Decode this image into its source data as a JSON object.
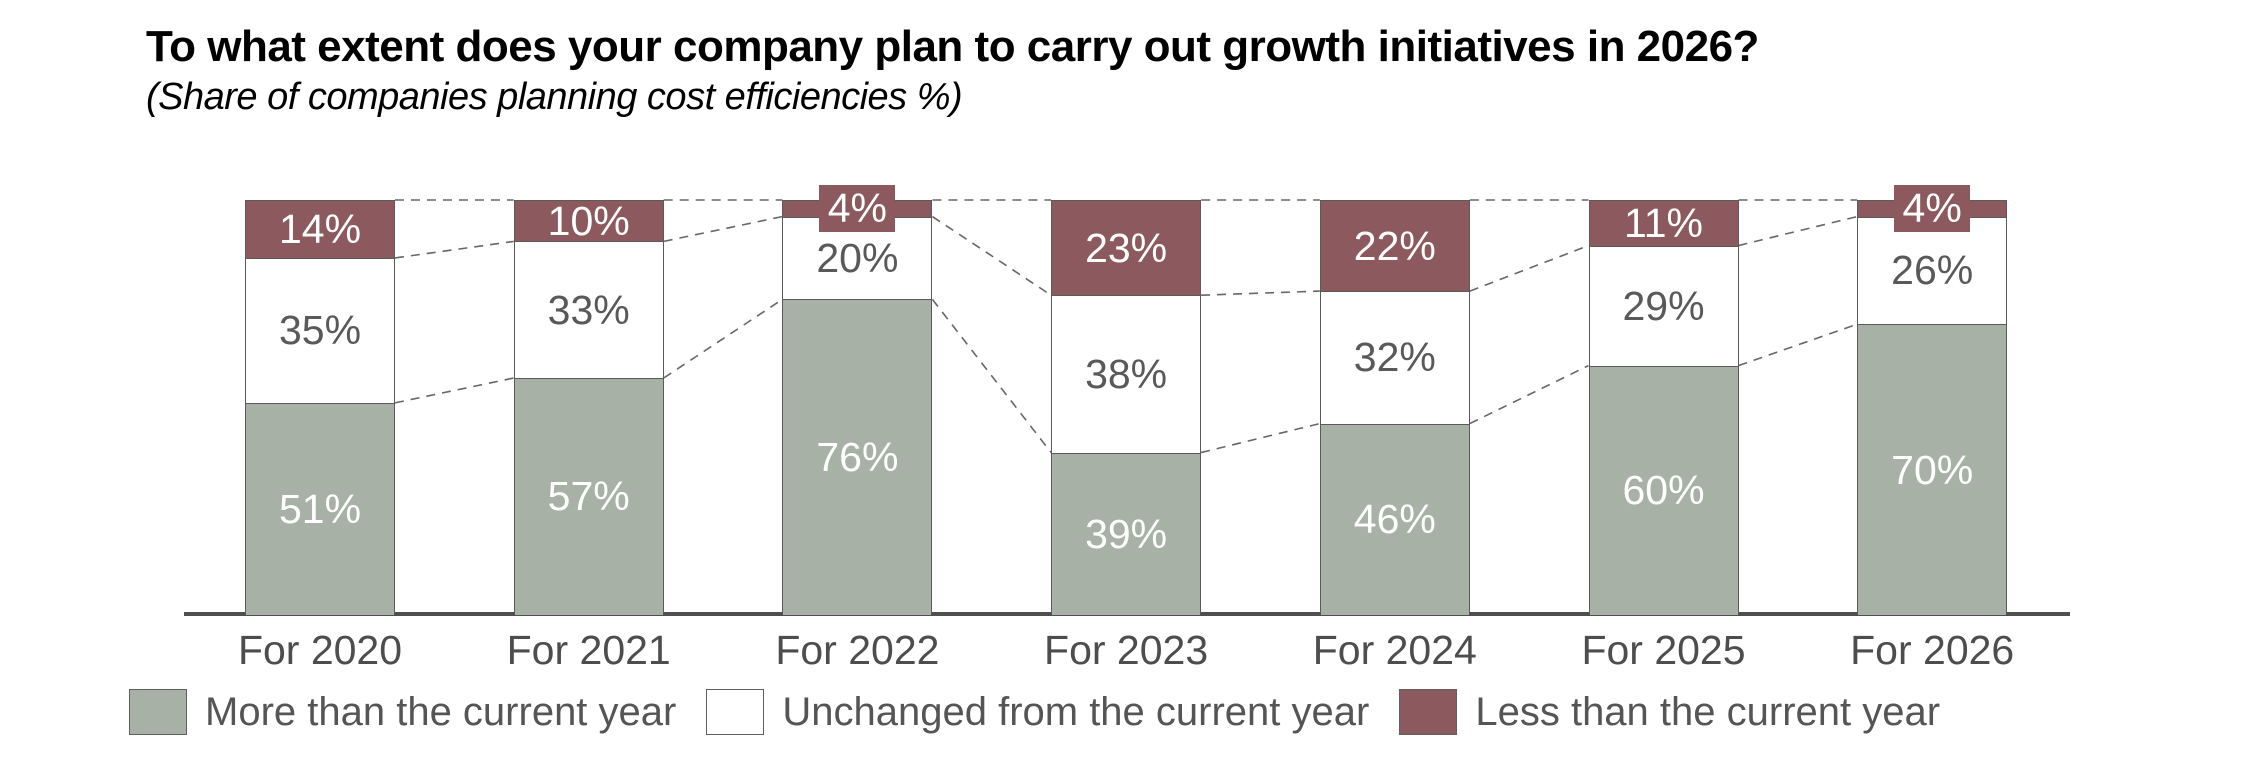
{
  "title": "To what extent does your company plan to carry out growth initiatives in 2026?",
  "subtitle": "(Share of companies planning cost efficiencies %)",
  "chart_data": {
    "type": "bar",
    "stacked": true,
    "orientation": "vertical",
    "categories": [
      "For 2020",
      "For 2021",
      "For 2022",
      "For 2023",
      "For 2024",
      "For 2025",
      "For 2026"
    ],
    "series": [
      {
        "name": "More than the current year",
        "color": "#a7b1a5",
        "label_color": "#ffffff",
        "values": [
          51,
          57,
          76,
          39,
          46,
          60,
          70
        ]
      },
      {
        "name": "Unchanged from the current year",
        "color": "#ffffff",
        "label_color": "#595959",
        "values": [
          35,
          33,
          20,
          38,
          32,
          29,
          26
        ]
      },
      {
        "name": "Less than the current year",
        "color": "#8c5a5e",
        "label_color": "#ffffff",
        "values": [
          14,
          10,
          4,
          23,
          22,
          11,
          4
        ]
      }
    ],
    "value_suffix": "%",
    "ylim": [
      0,
      100
    ],
    "grid": false,
    "legend_position": "bottom",
    "connector_lines": "dashed between adjacent bars at segment boundaries",
    "axis_color": "#4f4f4f",
    "dash_color": "#666666",
    "callout_threshold": 5
  }
}
